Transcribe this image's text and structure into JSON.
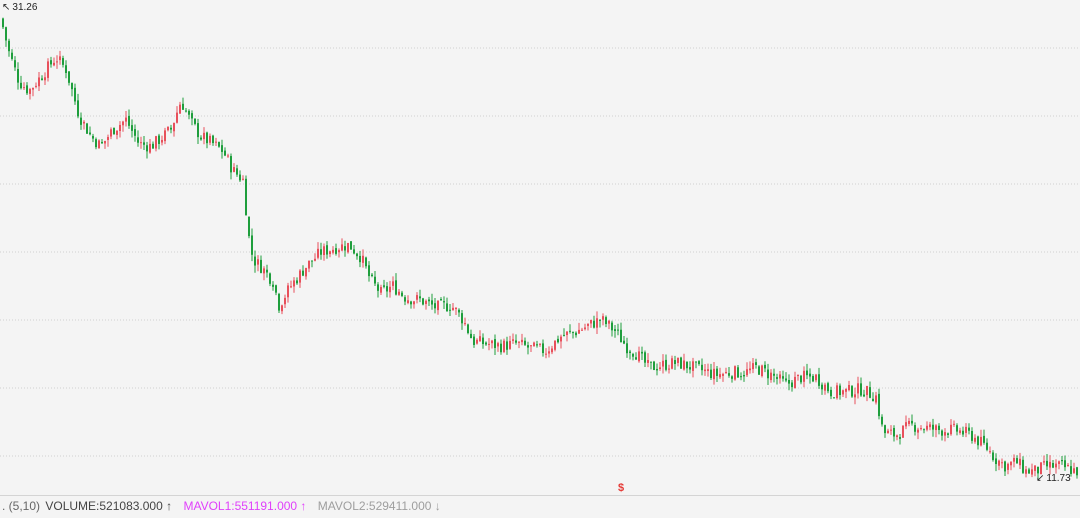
{
  "chart_data": {
    "type": "candlestick",
    "high_label": "31.26",
    "low_label": "11.73",
    "grid": true,
    "marker": "$",
    "colors": {
      "up": "#e8505b",
      "down": "#1e9e3c",
      "grid": "#cfcfcf",
      "background": "#f4f4f4"
    },
    "price_path": [
      [
        0,
        30.9
      ],
      [
        8,
        29.5
      ],
      [
        18,
        28.3
      ],
      [
        28,
        27.9
      ],
      [
        40,
        28.5
      ],
      [
        55,
        29.3
      ],
      [
        65,
        28.8
      ],
      [
        78,
        26.9
      ],
      [
        90,
        26.0
      ],
      [
        100,
        25.6
      ],
      [
        112,
        26.3
      ],
      [
        125,
        26.7
      ],
      [
        138,
        25.7
      ],
      [
        150,
        25.6
      ],
      [
        162,
        26.0
      ],
      [
        170,
        26.3
      ],
      [
        180,
        27.5
      ],
      [
        190,
        26.6
      ],
      [
        200,
        26.0
      ],
      [
        212,
        25.7
      ],
      [
        222,
        25.4
      ],
      [
        232,
        24.6
      ],
      [
        242,
        24.2
      ],
      [
        248,
        21.8
      ],
      [
        252,
        20.9
      ],
      [
        260,
        20.6
      ],
      [
        272,
        20.0
      ],
      [
        278,
        19.0
      ],
      [
        290,
        19.8
      ],
      [
        305,
        20.6
      ],
      [
        320,
        21.2
      ],
      [
        335,
        21.4
      ],
      [
        348,
        21.5
      ],
      [
        360,
        21.0
      ],
      [
        370,
        20.0
      ],
      [
        380,
        19.5
      ],
      [
        392,
        19.8
      ],
      [
        405,
        19.3
      ],
      [
        420,
        19.2
      ],
      [
        435,
        18.9
      ],
      [
        450,
        19.0
      ],
      [
        462,
        18.4
      ],
      [
        472,
        17.5
      ],
      [
        485,
        17.4
      ],
      [
        500,
        17.3
      ],
      [
        515,
        17.4
      ],
      [
        530,
        17.2
      ],
      [
        545,
        17.1
      ],
      [
        560,
        17.7
      ],
      [
        575,
        17.9
      ],
      [
        590,
        18.2
      ],
      [
        600,
        18.4
      ],
      [
        615,
        17.9
      ],
      [
        625,
        17.3
      ],
      [
        635,
        17.0
      ],
      [
        648,
        16.4
      ],
      [
        660,
        16.5
      ],
      [
        675,
        16.6
      ],
      [
        685,
        16.5
      ],
      [
        700,
        16.3
      ],
      [
        715,
        16.1
      ],
      [
        730,
        16.2
      ],
      [
        745,
        16.2
      ],
      [
        755,
        16.4
      ],
      [
        770,
        16.1
      ],
      [
        785,
        15.7
      ],
      [
        800,
        16.0
      ],
      [
        815,
        16.0
      ],
      [
        830,
        15.4
      ],
      [
        845,
        15.4
      ],
      [
        860,
        15.5
      ],
      [
        875,
        15.2
      ],
      [
        882,
        13.7
      ],
      [
        895,
        13.6
      ],
      [
        910,
        14.0
      ],
      [
        925,
        13.9
      ],
      [
        940,
        13.8
      ],
      [
        955,
        13.8
      ],
      [
        970,
        13.6
      ],
      [
        985,
        13.1
      ],
      [
        995,
        12.6
      ],
      [
        1005,
        12.3
      ],
      [
        1015,
        12.5
      ],
      [
        1025,
        12.1
      ],
      [
        1035,
        12.1
      ],
      [
        1045,
        12.3
      ],
      [
        1060,
        12.3
      ],
      [
        1075,
        12.1
      ]
    ]
  },
  "indicator": {
    "params": ". (5,10)",
    "volume": "VOLUME:521083.000 ↑",
    "mavol1": "MAVOL1:551191.000 ↑",
    "mavol2": "MAVOL2:529411.000 ↓"
  }
}
